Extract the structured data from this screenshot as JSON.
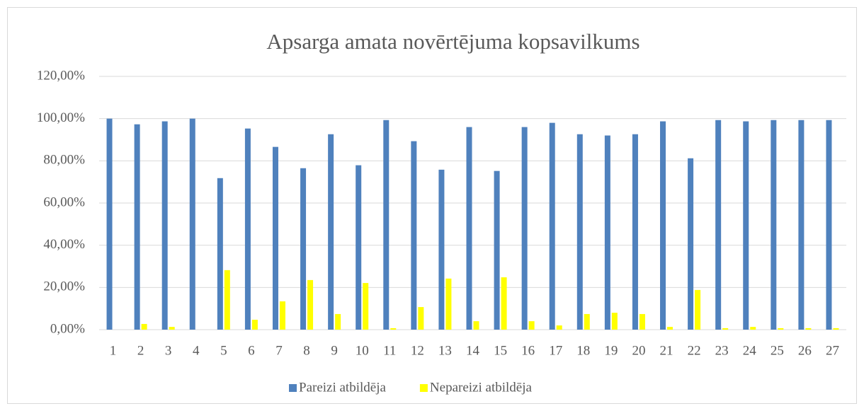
{
  "chart_data": {
    "type": "bar",
    "title": "Apsarga amata novērtējuma kopsavilkums",
    "categories": [
      "1",
      "2",
      "3",
      "4",
      "5",
      "6",
      "7",
      "8",
      "9",
      "10",
      "11",
      "12",
      "13",
      "14",
      "15",
      "16",
      "17",
      "18",
      "19",
      "20",
      "21",
      "22",
      "23",
      "24",
      "25",
      "26",
      "27"
    ],
    "series": [
      {
        "name": "Pareizi atbildēja",
        "color": "#4f81bd",
        "values": [
          100,
          97.3,
          98.7,
          100,
          71.8,
          95.3,
          86.6,
          76.5,
          92.6,
          77.9,
          99.3,
          89.3,
          75.8,
          96,
          75.2,
          96,
          98,
          92.6,
          92,
          92.6,
          98.7,
          81.2,
          99.3,
          98.7,
          99.3,
          99.3,
          99.3
        ]
      },
      {
        "name": "Nepareizi atbildēja",
        "color": "#ffff00",
        "values": [
          0,
          2.7,
          1.3,
          0,
          28.2,
          4.7,
          13.4,
          23.5,
          7.4,
          22.1,
          0.7,
          10.7,
          24.2,
          4,
          24.8,
          4,
          2,
          7.4,
          8,
          7.4,
          1.3,
          18.8,
          0.7,
          1.3,
          0.7,
          0.7,
          0.7
        ]
      }
    ],
    "ylim": [
      0,
      120
    ],
    "yticks": [
      {
        "value": 0,
        "label": "0,00%"
      },
      {
        "value": 20,
        "label": "20,00%"
      },
      {
        "value": 40,
        "label": "40,00%"
      },
      {
        "value": 60,
        "label": "60,00%"
      },
      {
        "value": 80,
        "label": "80,00%"
      },
      {
        "value": 100,
        "label": "100,00%"
      },
      {
        "value": 120,
        "label": "120,00%"
      }
    ],
    "grid": true,
    "legend": "bottom"
  }
}
